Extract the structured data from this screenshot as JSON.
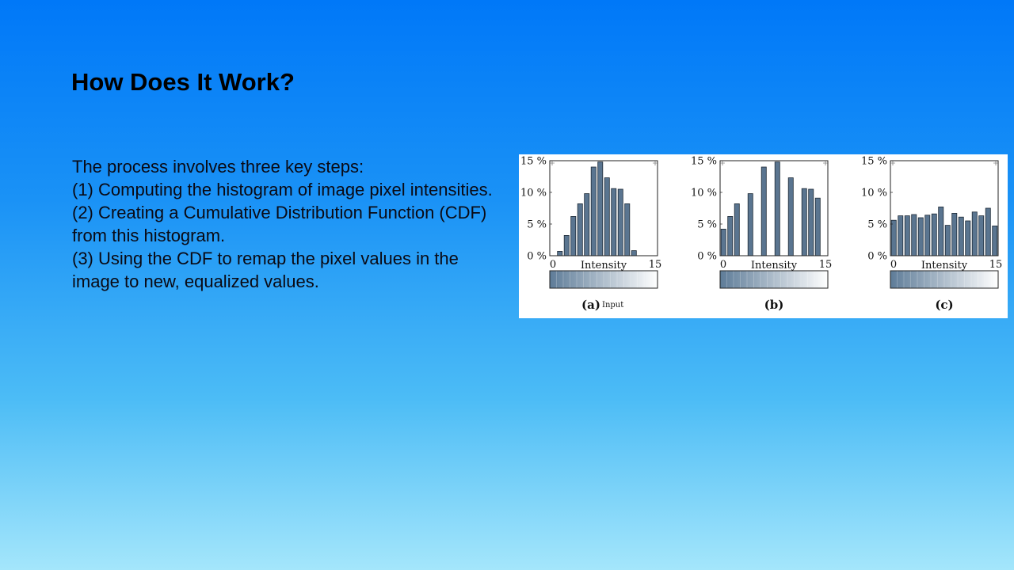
{
  "slide": {
    "title": "How Does It Work?",
    "body_lines": [
      "The process involves three key steps:",
      "(1) Computing the histogram of image pixel intensities.",
      "(2) Creating a Cumulative Distribution Function (CDF) from this histogram.",
      "(3) Using the CDF to remap the pixel values in the image to new, equalized values."
    ]
  },
  "colors": {
    "bar_fill": "#5a7590",
    "bar_stroke": "#1e2a36",
    "gradient_dark": "#5e7c98",
    "gradient_light": "#ffffff"
  },
  "chart_data": [
    {
      "type": "bar",
      "caption": "(a)",
      "caption_note": "Input",
      "xlabel": "Intensity",
      "x_tick_labels": [
        "0",
        "15"
      ],
      "y_tick_labels": [
        "0 %",
        "5 %",
        "10 %",
        "15 %"
      ],
      "ylim": [
        0,
        15
      ],
      "x": [
        0,
        1,
        2,
        3,
        4,
        5,
        6,
        7,
        8,
        9,
        10,
        11,
        12,
        13,
        14,
        15
      ],
      "values": [
        0,
        0.7,
        3.2,
        6.2,
        8.2,
        9.8,
        14.0,
        14.8,
        12.3,
        10.6,
        10.5,
        8.2,
        0.8,
        0,
        0,
        0
      ]
    },
    {
      "type": "bar",
      "caption": "(b)",
      "caption_note": "",
      "xlabel": "Intensity",
      "x_tick_labels": [
        "0",
        "15"
      ],
      "y_tick_labels": [
        "0 %",
        "5 %",
        "10 %",
        "15 %"
      ],
      "ylim": [
        0,
        15
      ],
      "x": [
        0,
        1,
        2,
        3,
        4,
        5,
        6,
        7,
        8,
        9,
        10,
        11,
        12,
        13,
        14,
        15
      ],
      "values": [
        4.2,
        6.2,
        8.2,
        0,
        9.8,
        0,
        14.0,
        0,
        14.8,
        0,
        12.3,
        0,
        10.6,
        10.5,
        9.1,
        0
      ]
    },
    {
      "type": "bar",
      "caption": "(c)",
      "caption_note": "",
      "xlabel": "Intensity",
      "x_tick_labels": [
        "0",
        "15"
      ],
      "y_tick_labels": [
        "0 %",
        "5 %",
        "10 %",
        "15 %"
      ],
      "ylim": [
        0,
        15
      ],
      "x": [
        0,
        1,
        2,
        3,
        4,
        5,
        6,
        7,
        8,
        9,
        10,
        11,
        12,
        13,
        14,
        15
      ],
      "values": [
        5.6,
        6.3,
        6.3,
        6.5,
        6.0,
        6.4,
        6.6,
        7.7,
        4.8,
        6.7,
        6.1,
        5.5,
        6.9,
        6.3,
        7.5,
        4.7
      ]
    }
  ]
}
